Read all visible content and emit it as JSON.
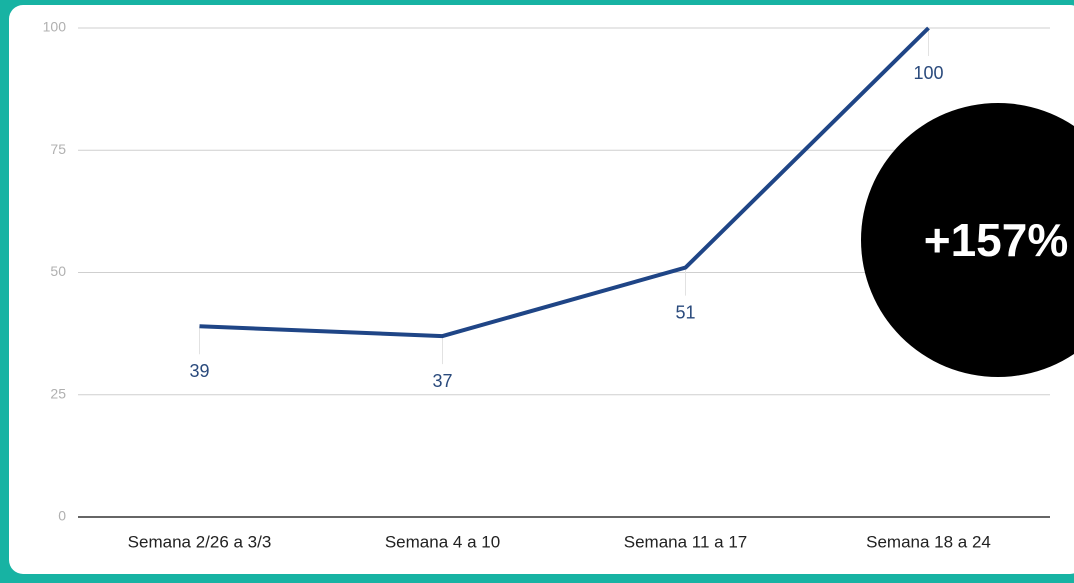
{
  "chart_data": {
    "type": "line",
    "annotation": "+157%",
    "categories": [
      "Semana 2/26 a 3/3",
      "Semana 4 a 10",
      "Semana 11 a 17",
      "Semana 18 a 24"
    ],
    "values": [
      39,
      37,
      51,
      100
    ],
    "color": "#1f4586",
    "ylim": [
      0,
      100
    ],
    "yticks": [
      0,
      25,
      50,
      75,
      100
    ],
    "grid": true
  }
}
